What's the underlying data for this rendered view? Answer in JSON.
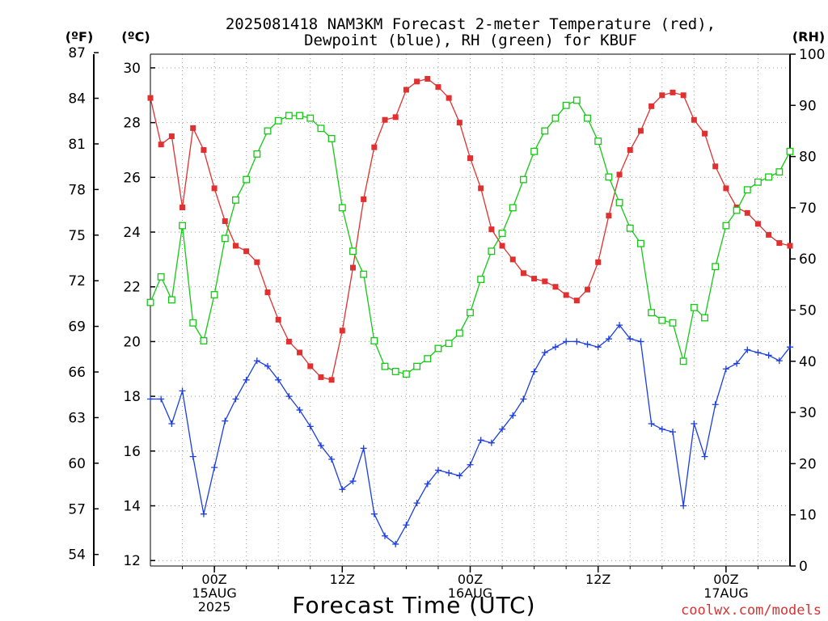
{
  "title_line1": "2025081418 NAM3KM Forecast 2-meter Temperature (red),",
  "title_line2": "Dewpoint (blue), RH (green) for KBUF",
  "unit_f": "(ºF)",
  "unit_c": "(ºC)",
  "unit_rh": "(RH)",
  "xlabel": "Forecast Time (UTC)",
  "credit": "coolwx.com/models",
  "colors": {
    "temperature": "#e03030",
    "dewpoint": "#1c3ee0",
    "rh": "#14c814",
    "grid": "#9a9a9a"
  },
  "chart_data": {
    "type": "line",
    "x_unit": "forecast hour from 2025-08-14 18Z (hourly)",
    "x_ticks": [
      {
        "hour": 6,
        "line1": "00Z",
        "line2": "15AUG",
        "line3": "2025"
      },
      {
        "hour": 18,
        "line1": "12Z",
        "line2": "",
        "line3": ""
      },
      {
        "hour": 30,
        "line1": "00Z",
        "line2": "16AUG",
        "line3": ""
      },
      {
        "hour": 42,
        "line1": "12Z",
        "line2": "",
        "line3": ""
      },
      {
        "hour": 54,
        "line1": "00Z",
        "line2": "17AUG",
        "line3": ""
      }
    ],
    "xlim": [
      0,
      60
    ],
    "ylim_celsius": [
      11.8,
      30.5
    ],
    "ylim_rh": [
      0,
      100
    ],
    "celsius_ticks": [
      12,
      14,
      16,
      18,
      20,
      22,
      24,
      26,
      28,
      30
    ],
    "fahrenheit_ticks": [
      54,
      57,
      60,
      63,
      66,
      69,
      72,
      75,
      78,
      81,
      84,
      87
    ],
    "rh_ticks": [
      0,
      10,
      20,
      30,
      40,
      50,
      60,
      70,
      80,
      90,
      100
    ],
    "series": [
      {
        "name": "Temperature",
        "axis": "celsius",
        "marker": "filled-square",
        "color": "#e03030",
        "values": [
          28.9,
          27.2,
          27.5,
          24.9,
          27.8,
          27.0,
          25.6,
          24.4,
          23.5,
          23.3,
          22.9,
          21.8,
          20.8,
          20.0,
          19.6,
          19.1,
          18.7,
          18.6,
          20.4,
          22.7,
          25.2,
          27.1,
          28.1,
          28.2,
          29.2,
          29.5,
          29.6,
          29.3,
          28.9,
          28.0,
          26.7,
          25.6,
          24.1,
          23.5,
          23.0,
          22.5,
          22.3,
          22.2,
          22.0,
          21.7,
          21.5,
          21.9,
          22.9,
          24.6,
          26.1,
          27.0,
          27.7,
          28.6,
          29.0,
          29.1,
          29.0,
          28.1,
          27.6,
          26.4,
          25.6,
          24.9,
          24.7,
          24.3,
          23.9,
          23.6,
          23.5
        ]
      },
      {
        "name": "Dewpoint",
        "axis": "celsius",
        "marker": "plus",
        "color": "#1c3ee0",
        "values": [
          17.9,
          17.9,
          17.0,
          18.2,
          15.8,
          13.7,
          15.4,
          17.1,
          17.9,
          18.6,
          19.3,
          19.1,
          18.6,
          18.0,
          17.5,
          16.9,
          16.2,
          15.7,
          14.6,
          14.9,
          16.1,
          13.7,
          12.9,
          12.6,
          13.3,
          14.1,
          14.8,
          15.3,
          15.2,
          15.1,
          15.5,
          16.4,
          16.3,
          16.8,
          17.3,
          17.9,
          18.9,
          19.6,
          19.8,
          20.0,
          20.0,
          19.9,
          19.8,
          20.1,
          20.6,
          20.1,
          20.0,
          17.0,
          16.8,
          16.7,
          14.0,
          17.0,
          15.8,
          17.7,
          19.0,
          19.2,
          19.7,
          19.6,
          19.5,
          19.3,
          19.8
        ]
      },
      {
        "name": "RH",
        "axis": "rh",
        "marker": "open-square",
        "color": "#14c814",
        "values": [
          51.5,
          56.5,
          52,
          66.5,
          47.5,
          44,
          53,
          64,
          71.5,
          75.5,
          80.5,
          85,
          87,
          88,
          88,
          87.5,
          85.5,
          83.5,
          70,
          61.5,
          57,
          44,
          39,
          38,
          37.5,
          39,
          40.5,
          42.5,
          43.5,
          45.5,
          49.5,
          56,
          61.5,
          65,
          70,
          75.5,
          81,
          85,
          87.5,
          90,
          91,
          87.5,
          83,
          76,
          71,
          66,
          63,
          49.5,
          48,
          47.5,
          40,
          50.5,
          48.5,
          58.5,
          66.5,
          69.5,
          73.5,
          75,
          76,
          77,
          81
        ]
      }
    ]
  }
}
